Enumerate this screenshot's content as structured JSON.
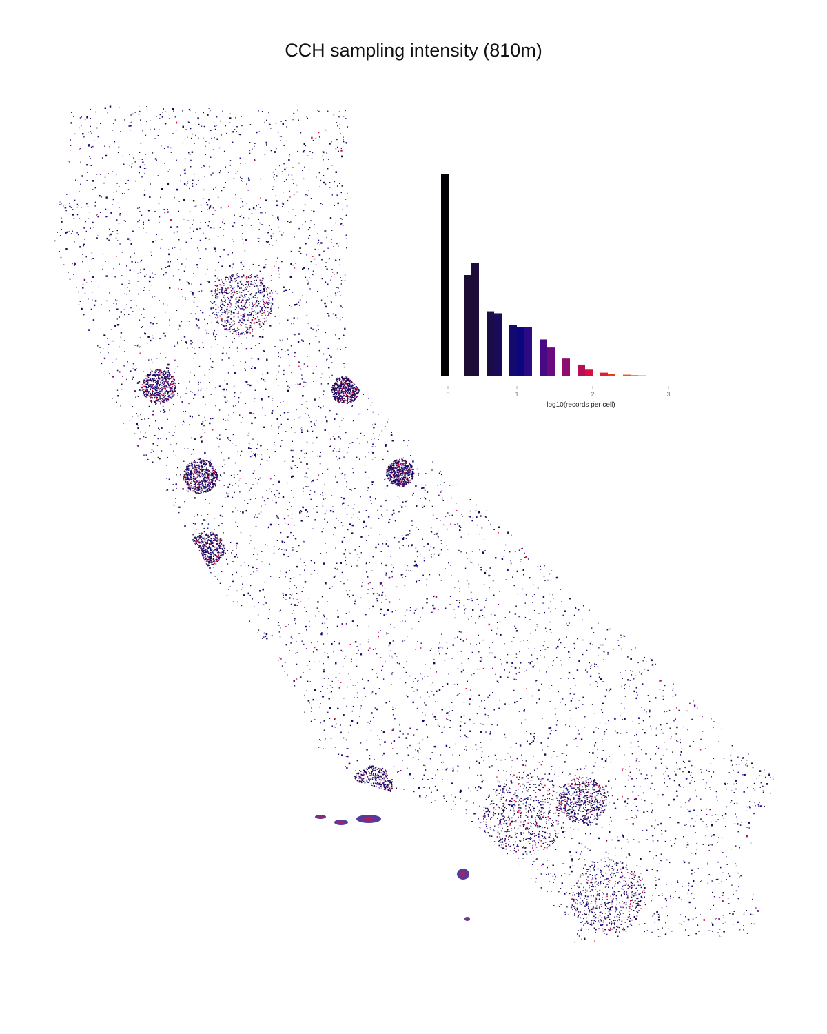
{
  "title": "CCH sampling intensity (810m)",
  "colors": {
    "low": "#000004",
    "mid_dark": "#1b0c41",
    "mid": "#0d0882",
    "purple": "#5b0a80",
    "magenta": "#9c0f6b",
    "high": "#e0113c",
    "top": "#f28b18"
  },
  "chart_data": {
    "type": "bar",
    "xlabel": "log10(records per cell)",
    "x_ticks": [
      "0",
      "1",
      "2",
      "3"
    ],
    "bins": [
      {
        "x0": 0.0,
        "x1": 0.1,
        "count": 1.0,
        "color": "#000004"
      },
      {
        "x0": 0.3,
        "x1": 0.4,
        "count": 0.5,
        "color": "#1d0c33"
      },
      {
        "x0": 0.4,
        "x1": 0.5,
        "count": 0.56,
        "color": "#1d0c3a"
      },
      {
        "x0": 0.6,
        "x1": 0.7,
        "count": 0.32,
        "color": "#1b0c45"
      },
      {
        "x0": 0.7,
        "x1": 0.8,
        "count": 0.31,
        "color": "#1a0b58"
      },
      {
        "x0": 0.9,
        "x1": 1.0,
        "count": 0.25,
        "color": "#120a70"
      },
      {
        "x0": 1.0,
        "x1": 1.1,
        "count": 0.24,
        "color": "#0b067e"
      },
      {
        "x0": 1.1,
        "x1": 1.2,
        "count": 0.24,
        "color": "#2c0a84"
      },
      {
        "x0": 1.3,
        "x1": 1.4,
        "count": 0.18,
        "color": "#470a84"
      },
      {
        "x0": 1.4,
        "x1": 1.5,
        "count": 0.14,
        "color": "#6a0a7e"
      },
      {
        "x0": 1.6,
        "x1": 1.7,
        "count": 0.085,
        "color": "#8d0c6f"
      },
      {
        "x0": 1.8,
        "x1": 1.9,
        "count": 0.055,
        "color": "#b80e57"
      },
      {
        "x0": 1.9,
        "x1": 2.0,
        "count": 0.03,
        "color": "#d6113f"
      },
      {
        "x0": 2.1,
        "x1": 2.2,
        "count": 0.015,
        "color": "#e0202e"
      },
      {
        "x0": 2.2,
        "x1": 2.3,
        "count": 0.009,
        "color": "#e93a1e"
      },
      {
        "x0": 2.4,
        "x1": 2.5,
        "count": 0.005,
        "color": "#f05a18"
      },
      {
        "x0": 2.5,
        "x1": 2.6,
        "count": 0.003,
        "color": "#f27a14"
      },
      {
        "x0": 2.6,
        "x1": 2.7,
        "count": 0.002,
        "color": "#f4a012"
      }
    ],
    "xlim": [
      0,
      3
    ]
  }
}
